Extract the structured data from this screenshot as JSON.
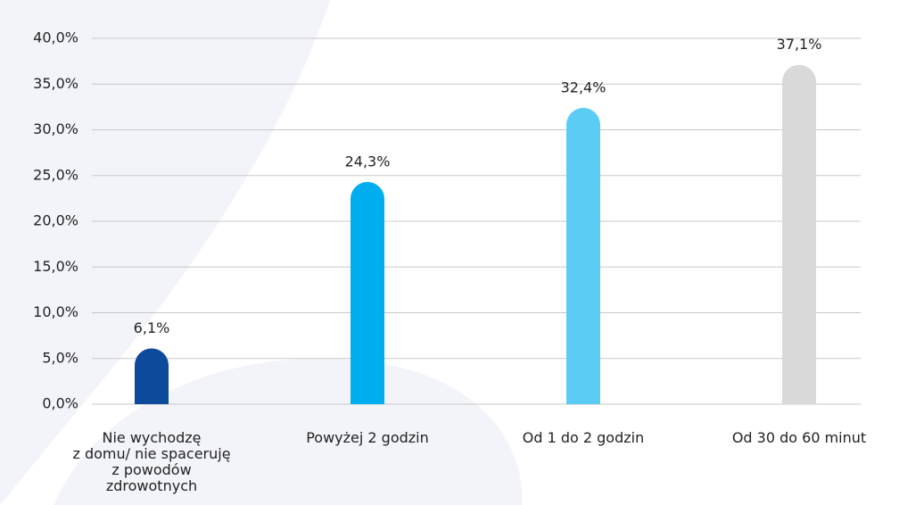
{
  "chart_data": {
    "type": "bar",
    "categories": [
      "Nie wychodzę\nz domu/ nie spaceruję\nz powodów\nzdrowotnych",
      "Powyżej 2 godzin",
      "Od 1 do 2 godzin",
      "Od 30 do 60 minut"
    ],
    "values": [
      6.1,
      24.3,
      32.4,
      37.1
    ],
    "value_labels": [
      "6,1%",
      "24,3%",
      "32,4%",
      "37,1%"
    ],
    "colors": [
      "#0d4a9b",
      "#00aeef",
      "#5bcdf5",
      "#d9d9d9"
    ],
    "ylim": [
      0,
      40
    ],
    "yticks": [
      {
        "value": 0,
        "label": "0,0%"
      },
      {
        "value": 5,
        "label": "5,0%"
      },
      {
        "value": 10,
        "label": "10,0%"
      },
      {
        "value": 15,
        "label": "15,0%"
      },
      {
        "value": 20,
        "label": "20,0%"
      },
      {
        "value": 25,
        "label": "25,0%"
      },
      {
        "value": 30,
        "label": "30,0%"
      },
      {
        "value": 35,
        "label": "35,0%"
      },
      {
        "value": 40,
        "label": "40,0%"
      }
    ],
    "grid": true
  }
}
